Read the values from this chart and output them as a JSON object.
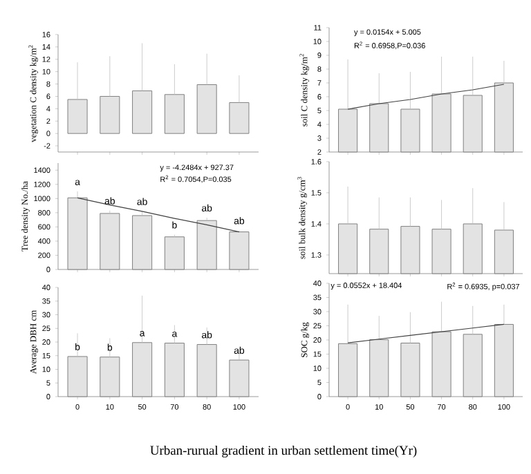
{
  "chart_data": [
    {
      "type": "bar",
      "ylabel": "vegetation C density kg/m$^{2}$",
      "categories": [
        "0",
        "10",
        "50",
        "70",
        "80",
        "100"
      ],
      "tick_labels": "y",
      "ylim": [
        -3,
        16
      ],
      "yticks": [
        -2,
        0,
        2,
        4,
        6,
        8,
        10,
        12,
        14,
        16
      ],
      "series": [
        {
          "color": "#808080",
          "values": [
            5.5,
            6.0,
            6.9,
            6.3,
            7.9,
            5.0
          ],
          "errors": [
            [
              5.5,
              11.5
            ],
            [
              6.0,
              12.5
            ],
            [
              6.9,
              14.6
            ],
            [
              6.3,
              11.2
            ],
            [
              7.9,
              12.9
            ],
            [
              5.0,
              9.4
            ]
          ]
        }
      ]
    },
    {
      "type": "bar",
      "ylabel": "soil C density kg/m$^{2}$",
      "categories": [
        "0",
        "10",
        "50",
        "70",
        "80",
        "100"
      ],
      "tick_labels": "y",
      "ylim": [
        2,
        11
      ],
      "yticks": [
        2,
        3,
        4,
        5,
        6,
        7,
        8,
        9,
        10,
        11
      ],
      "series": [
        {
          "color": "#808080",
          "values": [
            5.1,
            5.5,
            5.1,
            6.2,
            6.1,
            7.0
          ],
          "errors": [
            [
              5.1,
              8.7
            ],
            [
              5.5,
              7.7
            ],
            [
              5.1,
              7.8
            ],
            [
              6.2,
              8.9
            ],
            [
              6.1,
              8.9
            ],
            [
              7.0,
              8.6
            ]
          ]
        },
        {
          "type": "line",
          "color": "#404040",
          "values": [
            5.1,
            5.5,
            5.8,
            6.2,
            6.5,
            6.9
          ]
        }
      ],
      "annotations": [
        "y = 0.0154x + 5.005",
        "R$^{2}$ = 0.6958,P=0.036"
      ]
    },
    {
      "type": "bar",
      "ylabel": "Tree density No./ha",
      "categories": [
        "0",
        "10",
        "50",
        "70",
        "80",
        "100"
      ],
      "tick_labels": "y",
      "ylim": [
        0,
        1500
      ],
      "yticks": [
        0,
        200,
        400,
        600,
        800,
        1000,
        1200,
        1400
      ],
      "series": [
        {
          "color": "#808080",
          "values": [
            1010,
            790,
            760,
            460,
            690,
            530
          ],
          "errors": [
            [
              1010,
              1100
            ],
            [
              790,
              830
            ],
            [
              760,
              820
            ],
            [
              460,
              490
            ],
            [
              690,
              730
            ],
            [
              530,
              550
            ]
          ]
        },
        {
          "type": "line",
          "color": "#404040",
          "values": [
            1010,
            910,
            820,
            720,
            630,
            530
          ]
        }
      ],
      "annotations": [
        "y = -4.2484x + 927.37",
        "R$^{2}$ = 0.7054,P=0.035",
        {
          "text": "a",
          "x": "0",
          "y": 1100
        },
        {
          "text": "ab",
          "x": "10",
          "y": 830
        },
        {
          "text": "ab",
          "x": "50",
          "y": 820
        },
        {
          "text": "b",
          "x": "70",
          "y": 490
        },
        {
          "text": "ab",
          "x": "80",
          "y": 730
        },
        {
          "text": "ab",
          "x": "100",
          "y": 550
        }
      ]
    },
    {
      "type": "bar",
      "ylabel": "soil bulk density g/cm$^{3}$",
      "categories": [
        "0",
        "10",
        "50",
        "70",
        "80",
        "100"
      ],
      "tick_labels": "y",
      "ylim": [
        1.24,
        1.6
      ],
      "yticks": [
        1.3,
        1.4,
        1.5,
        1.6
      ],
      "series": [
        {
          "color": "#808080",
          "values": [
            1.4,
            1.383,
            1.392,
            1.383,
            1.4,
            1.38
          ],
          "errors": [
            [
              1.4,
              1.52
            ],
            [
              1.383,
              1.485
            ],
            [
              1.392,
              1.485
            ],
            [
              1.383,
              1.477
            ],
            [
              1.4,
              1.515
            ],
            [
              1.38,
              1.47
            ]
          ]
        }
      ]
    },
    {
      "type": "bar",
      "ylabel": "Average DBH cm",
      "xlabel": "Urban-rurual gradient in urban settlement time(Yr)",
      "categories": [
        "0",
        "10",
        "50",
        "70",
        "80",
        "100"
      ],
      "ylim": [
        0,
        40
      ],
      "yticks": [
        0,
        5,
        10,
        15,
        20,
        25,
        30,
        35,
        40
      ],
      "series": [
        {
          "color": "#808080",
          "values": [
            14.7,
            14.5,
            19.8,
            19.6,
            19.1,
            13.4
          ],
          "errors": [
            [
              14.7,
              23.2
            ],
            [
              14.5,
              21.4
            ],
            [
              19.8,
              37
            ],
            [
              19.6,
              26.2
            ],
            [
              19.1,
              25.3
            ],
            [
              13.4,
              17.8
            ]
          ]
        }
      ],
      "annotations": [
        {
          "text": "b",
          "x": "0",
          "y": 14.7
        },
        {
          "text": "b",
          "x": "10",
          "y": 14.5
        },
        {
          "text": "a",
          "x": "50",
          "y": 19.8
        },
        {
          "text": "a",
          "x": "70",
          "y": 19.6
        },
        {
          "text": "ab",
          "x": "80",
          "y": 19.1
        },
        {
          "text": "ab",
          "x": "100",
          "y": 13.4
        }
      ]
    },
    {
      "type": "bar",
      "ylabel": "SOC g/kg",
      "categories": [
        "0",
        "10",
        "50",
        "70",
        "80",
        "100"
      ],
      "ylim": [
        0,
        40
      ],
      "yticks": [
        0,
        5,
        10,
        15,
        20,
        25,
        30,
        35,
        40
      ],
      "series": [
        {
          "color": "#808080",
          "values": [
            18.7,
            20.1,
            18.9,
            22.9,
            22.0,
            25.5
          ],
          "errors": [
            [
              18.7,
              32.5
            ],
            [
              20.1,
              28.5
            ],
            [
              18.9,
              29.8
            ],
            [
              22.9,
              33.5
            ],
            [
              22.0,
              32
            ],
            [
              25.5,
              32.5
            ]
          ]
        },
        {
          "type": "line",
          "color": "#404040",
          "values": [
            19,
            20.3,
            21.6,
            22.9,
            24.2,
            25.5
          ]
        }
      ],
      "annotations": [
        "y = 0.0552x + 18.404",
        "R$^{2}$ = 0.6935, p=0.037"
      ]
    }
  ]
}
